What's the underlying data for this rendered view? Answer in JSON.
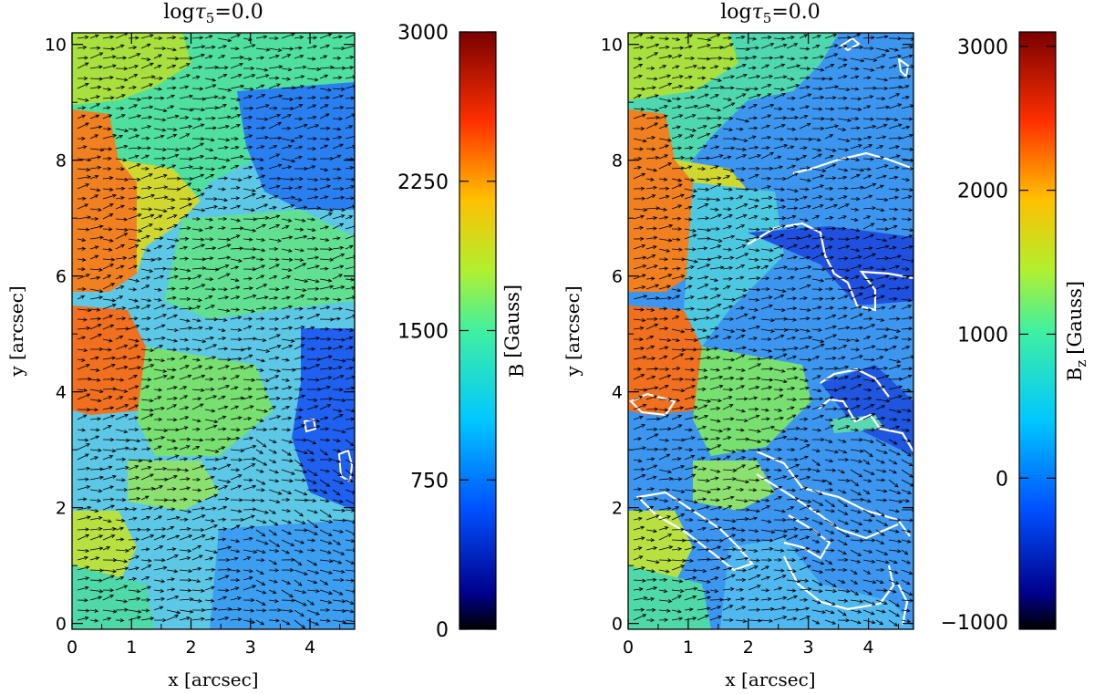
{
  "chart_data": [
    {
      "type": "heatmap",
      "title_prefix": "log",
      "title_symbol": "τ",
      "title_subscript": "5",
      "title_value": "=0.0",
      "xlabel": "x [arcsec]",
      "ylabel": "y [arcsec]",
      "xlim": [
        0,
        4.75
      ],
      "ylim": [
        -0.1,
        10.2
      ],
      "x_ticks": [
        0,
        1,
        2,
        3,
        4
      ],
      "x_tick_labels": [
        "0",
        "1",
        "2",
        "3",
        "4"
      ],
      "y_ticks": [
        0,
        2,
        4,
        6,
        8,
        10
      ],
      "y_tick_labels": [
        "0",
        "2",
        "4",
        "6",
        "8",
        "10"
      ],
      "quantity": "B",
      "colorbar": {
        "label": "B",
        "label_subscript": "",
        "unit": "[Gauss]",
        "min": 0,
        "max": 3000,
        "ticks": [
          0,
          750,
          1500,
          2250,
          3000
        ],
        "tick_labels": [
          "0",
          "750",
          "1500",
          "2250",
          "3000"
        ]
      },
      "overlay": "horizontal field vectors (arrows) and white contours"
    },
    {
      "type": "heatmap",
      "title_prefix": "log",
      "title_symbol": "τ",
      "title_subscript": "5",
      "title_value": "=0.0",
      "xlabel": "x [arcsec]",
      "ylabel": "y [arcsec]",
      "xlim": [
        0,
        4.75
      ],
      "ylim": [
        -0.1,
        10.2
      ],
      "x_ticks": [
        0,
        1,
        2,
        3,
        4
      ],
      "x_tick_labels": [
        "0",
        "1",
        "2",
        "3",
        "4"
      ],
      "y_ticks": [
        0,
        2,
        4,
        6,
        8,
        10
      ],
      "y_tick_labels": [
        "0",
        "2",
        "4",
        "6",
        "8",
        "10"
      ],
      "quantity": "Bz",
      "colorbar": {
        "label": "B",
        "label_subscript": "z",
        "unit": "[Gauss]",
        "min": -1050,
        "max": 3100,
        "ticks": [
          -1000,
          0,
          1000,
          2000,
          3000
        ],
        "tick_labels": [
          "−1000",
          "0",
          "1000",
          "2000",
          "3000"
        ]
      },
      "overlay": "horizontal field vectors (arrows) and white contours"
    }
  ]
}
